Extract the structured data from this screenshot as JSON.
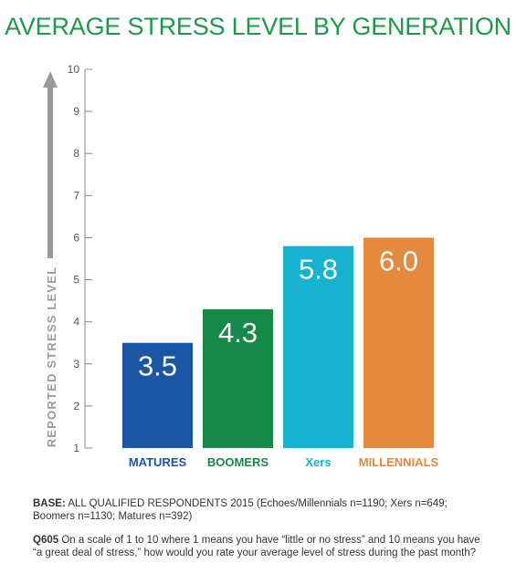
{
  "title": "AVERAGE STRESS LEVEL BY GENERATION",
  "chart_data": {
    "type": "bar",
    "categories": [
      "MATURES",
      "BOOMERS",
      "Xers",
      "MILLENNIALS"
    ],
    "values": [
      3.5,
      4.3,
      5.8,
      6.0
    ],
    "value_labels": [
      "3.5",
      "4.3",
      "5.8",
      "6.0"
    ],
    "colors": [
      "#1c55a4",
      "#17894b",
      "#16b2cf",
      "#e38a3e"
    ],
    "ylabel": "REPORTED STRESS LEVEL",
    "xlabel": "",
    "ylim": [
      1,
      10
    ],
    "yticks": [
      1,
      2,
      3,
      4,
      5,
      6,
      7,
      8,
      9,
      10
    ],
    "grid": false
  },
  "notes": {
    "base_label": "BASE:",
    "base_text": " ALL QUALIFIED RESPONDENTS 2015 (Echoes/Millennials n=1190; Xers n=649; Boomers n=1130; Matures n=392)",
    "question_label": "Q605",
    "question_text": " On a scale of 1 to 10 where 1 means you have “little or no stress” and 10 means you have “a great deal of stress,” how would you rate your average level of stress during the past month?"
  }
}
